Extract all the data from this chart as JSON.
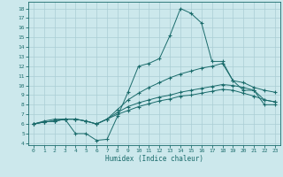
{
  "xlabel": "Humidex (Indice chaleur)",
  "background_color": "#cce8ec",
  "grid_color": "#aacdd4",
  "line_color": "#1a6b6b",
  "xlim": [
    -0.5,
    23.5
  ],
  "ylim": [
    3.8,
    18.7
  ],
  "xticks": [
    0,
    1,
    2,
    3,
    4,
    5,
    6,
    7,
    8,
    9,
    10,
    11,
    12,
    13,
    14,
    15,
    16,
    17,
    18,
    19,
    20,
    21,
    22,
    23
  ],
  "yticks": [
    4,
    5,
    6,
    7,
    8,
    9,
    10,
    11,
    12,
    13,
    14,
    15,
    16,
    17,
    18
  ],
  "line1_x": [
    0,
    1,
    2,
    3,
    4,
    5,
    6,
    7,
    8,
    9,
    10,
    11,
    12,
    13,
    14,
    15,
    16,
    17,
    18,
    19,
    20,
    21,
    22,
    23
  ],
  "line1_y": [
    6.0,
    6.3,
    6.5,
    6.5,
    5.0,
    5.0,
    4.3,
    4.4,
    6.8,
    9.3,
    12.0,
    12.3,
    12.8,
    15.2,
    18.0,
    17.5,
    16.5,
    12.5,
    12.5,
    10.5,
    9.5,
    9.5,
    8.0,
    8.0
  ],
  "line2_x": [
    0,
    1,
    2,
    3,
    4,
    5,
    6,
    7,
    8,
    9,
    10,
    11,
    12,
    13,
    14,
    15,
    16,
    17,
    18,
    19,
    20,
    21,
    22,
    23
  ],
  "line2_y": [
    6.0,
    6.2,
    6.3,
    6.5,
    6.5,
    6.3,
    6.0,
    6.5,
    7.5,
    8.5,
    9.2,
    9.8,
    10.3,
    10.8,
    11.2,
    11.5,
    11.8,
    12.0,
    12.3,
    10.5,
    10.3,
    9.8,
    9.5,
    9.3
  ],
  "line3_x": [
    0,
    1,
    2,
    3,
    4,
    5,
    6,
    7,
    8,
    9,
    10,
    11,
    12,
    13,
    14,
    15,
    16,
    17,
    18,
    19,
    20,
    21,
    22,
    23
  ],
  "line3_y": [
    6.0,
    6.2,
    6.3,
    6.5,
    6.5,
    6.3,
    6.0,
    6.5,
    7.2,
    7.8,
    8.2,
    8.5,
    8.8,
    9.0,
    9.3,
    9.5,
    9.7,
    9.9,
    10.1,
    10.0,
    9.8,
    9.5,
    8.5,
    8.3
  ],
  "line4_x": [
    0,
    1,
    2,
    3,
    4,
    5,
    6,
    7,
    8,
    9,
    10,
    11,
    12,
    13,
    14,
    15,
    16,
    17,
    18,
    19,
    20,
    21,
    22,
    23
  ],
  "line4_y": [
    6.0,
    6.2,
    6.3,
    6.5,
    6.5,
    6.3,
    6.0,
    6.5,
    7.0,
    7.4,
    7.8,
    8.1,
    8.4,
    8.6,
    8.9,
    9.0,
    9.2,
    9.4,
    9.6,
    9.5,
    9.2,
    8.9,
    8.5,
    8.3
  ]
}
